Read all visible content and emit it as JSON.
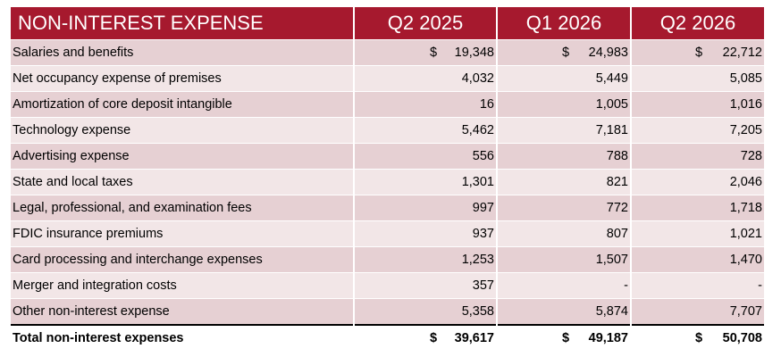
{
  "table": {
    "title": "NON-INTEREST EXPENSE",
    "columns": [
      "Q2 2025",
      "Q1 2026",
      "Q2 2026"
    ],
    "currency_symbol": "$",
    "rows": [
      {
        "label": "Salaries and benefits",
        "values": [
          "19,348",
          "24,983",
          "22,712"
        ],
        "currency": [
          "$",
          "$",
          "$"
        ]
      },
      {
        "label": "Net occupancy expense of premises",
        "values": [
          "4,032",
          "5,449",
          "5,085"
        ],
        "currency": [
          "",
          "",
          ""
        ]
      },
      {
        "label": "Amortization of core deposit intangible",
        "values": [
          "16",
          "1,005",
          "1,016"
        ],
        "currency": [
          "",
          "",
          ""
        ]
      },
      {
        "label": "Technology expense",
        "values": [
          "5,462",
          "7,181",
          "7,205"
        ],
        "currency": [
          "",
          "",
          ""
        ]
      },
      {
        "label": "Advertising expense",
        "values": [
          "556",
          "788",
          "728"
        ],
        "currency": [
          "",
          "",
          ""
        ]
      },
      {
        "label": "State and local taxes",
        "values": [
          "1,301",
          "821",
          "2,046"
        ],
        "currency": [
          "",
          "",
          ""
        ]
      },
      {
        "label": "Legal, professional, and examination fees",
        "values": [
          "997",
          "772",
          "1,718"
        ],
        "currency": [
          "",
          "",
          ""
        ]
      },
      {
        "label": "FDIC insurance premiums",
        "values": [
          "937",
          "807",
          "1,021"
        ],
        "currency": [
          "",
          "",
          ""
        ]
      },
      {
        "label": "Card processing and interchange expenses",
        "values": [
          "1,253",
          "1,507",
          "1,470"
        ],
        "currency": [
          "",
          "",
          ""
        ]
      },
      {
        "label": "Merger and integration costs",
        "values": [
          "357",
          "-",
          "-"
        ],
        "currency": [
          "",
          "",
          ""
        ]
      },
      {
        "label": "Other non-interest expense",
        "values": [
          "5,358",
          "5,874",
          "7,707"
        ],
        "currency": [
          "",
          "",
          ""
        ]
      }
    ],
    "total": {
      "label": "Total non-interest expenses",
      "values": [
        "39,617",
        "49,187",
        "50,708"
      ],
      "currency": [
        "$",
        "$",
        "$"
      ]
    }
  },
  "colors": {
    "header_bg": "#a6192e",
    "row_dark": "#e6d0d3",
    "row_light": "#f2e6e7"
  }
}
